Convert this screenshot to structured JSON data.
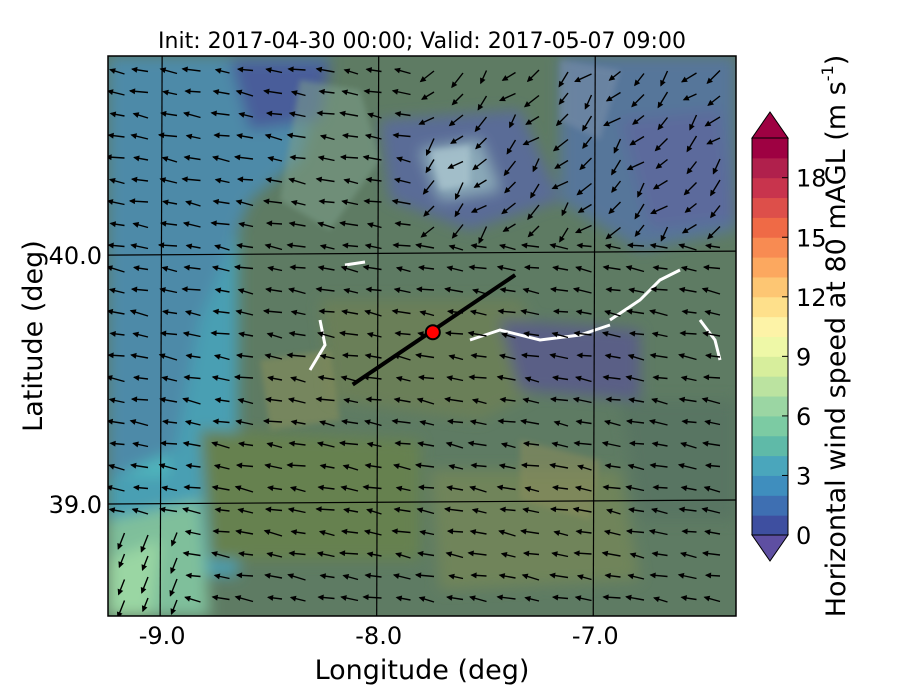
{
  "chart_data": {
    "type": "heatmap",
    "title": "Init: 2017-04-30 00:00; Valid: 2017-05-07 09:00",
    "xlabel": "Longitude (deg)",
    "ylabel": "Latitude (deg)",
    "xlim": [
      -9.25,
      -6.35
    ],
    "ylim": [
      38.55,
      40.8
    ],
    "xticks": [
      -9.0,
      -8.0,
      -7.0
    ],
    "xtick_labels": [
      "-9.0",
      "-8.0",
      "-7.0"
    ],
    "yticks": [
      39.0,
      40.0
    ],
    "ytick_labels": [
      "39.0",
      "40.0"
    ],
    "grid": true,
    "colorbar": {
      "label": "Horizontal wind speed at 80 mAGL (m s",
      "label_sup": "-1",
      "label_end": ")",
      "min": 0,
      "max": 20,
      "extend": "both",
      "ticks": [
        0,
        3,
        6,
        9,
        12,
        15,
        18
      ],
      "tick_labels": [
        "0",
        "3",
        "6",
        "9",
        "12",
        "15",
        "18"
      ],
      "colors": [
        "#3e4fa0",
        "#3e6fb2",
        "#3f8ebe",
        "#4aa6bc",
        "#5fbaa8",
        "#7ccba3",
        "#9bd6a3",
        "#bbe3a0",
        "#d7ee9c",
        "#eef8a7",
        "#fdf3a7",
        "#fee08b",
        "#fdc673",
        "#fca85f",
        "#f88b52",
        "#ef6a46",
        "#dd4f4a",
        "#c8344d",
        "#b0204c",
        "#9e0142"
      ],
      "under_color": "#5e4fa2",
      "over_color": "#9e0142"
    },
    "wind_field": {
      "description": "Horizontal wind vectors at 80 mAGL, predominantly from the east/northeast (arrows pointing west/southwest)",
      "dominant_direction": "westward"
    },
    "cross_section_line": {
      "start": {
        "lon": -8.12,
        "lat": 39.48
      },
      "end": {
        "lon": -7.37,
        "lat": 39.92
      }
    },
    "site_marker": {
      "lon": -7.75,
      "lat": 39.69,
      "color": "#ff0000"
    }
  }
}
